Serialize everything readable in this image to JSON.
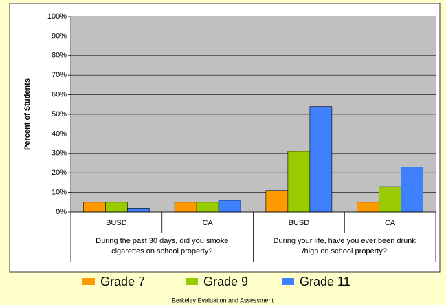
{
  "chart_data": {
    "type": "bar",
    "y_axis_label": "Percent of Students",
    "categories": [
      "BUSD",
      "CA",
      "BUSD",
      "CA"
    ],
    "groups": [
      "During the past 30 days, did you smoke\ncigarettes on school property?",
      "During your life, have you ever been drunk\n/high on school property?"
    ],
    "series": [
      {
        "name": "Grade 7",
        "color": "#ff9900",
        "values": [
          5,
          5,
          11,
          5
        ]
      },
      {
        "name": "Grade 9",
        "color": "#99cc00",
        "values": [
          5,
          5,
          31,
          13
        ]
      },
      {
        "name": "Grade 11",
        "color": "#3f80ff",
        "values": [
          2,
          6,
          54,
          23
        ]
      }
    ],
    "ylim": [
      0,
      100
    ],
    "yticks": [
      {
        "value": 0,
        "label": "0%"
      },
      {
        "value": 10,
        "label": "10%"
      },
      {
        "value": 20,
        "label": "20%"
      },
      {
        "value": 30,
        "label": "30%"
      },
      {
        "value": 40,
        "label": "40%"
      },
      {
        "value": 50,
        "label": "50%"
      },
      {
        "value": 60,
        "label": "60%"
      },
      {
        "value": 70,
        "label": "70%"
      },
      {
        "value": 80,
        "label": "80%"
      },
      {
        "value": 90,
        "label": "90%"
      },
      {
        "value": 100,
        "label": "100%"
      }
    ],
    "grid": true,
    "legend": "bottom",
    "footer": "Berkeley Evaluation and Assessment"
  }
}
